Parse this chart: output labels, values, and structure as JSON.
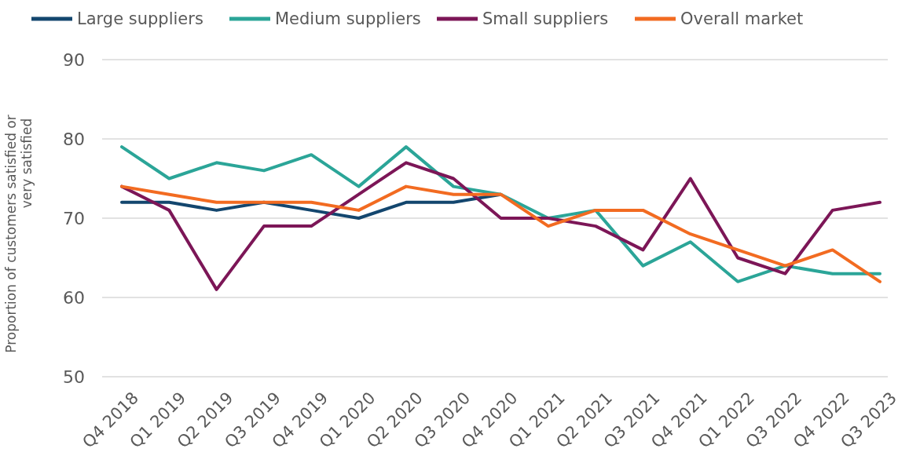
{
  "chart_data": {
    "type": "line",
    "ylabel": "Proportion of customers satisfied or very satisfied",
    "categories": [
      "Q4 2018",
      "Q1 2019",
      "Q2 2019",
      "Q3 2019",
      "Q4 2019",
      "Q1 2020",
      "Q2 2020",
      "Q3 2020",
      "Q4 2020",
      "Q1 2021",
      "Q2 2021",
      "Q3 2021",
      "Q4 2021",
      "Q1 2022",
      "Q3 2022",
      "Q4 2022",
      "Q3 2023"
    ],
    "series": [
      {
        "name": "Large suppliers",
        "color": "#13466e",
        "values": [
          72,
          72,
          71,
          72,
          71,
          70,
          72,
          72,
          73,
          null,
          null,
          null,
          null,
          null,
          null,
          null,
          null
        ]
      },
      {
        "name": "Medium suppliers",
        "color": "#2ba598",
        "values": [
          79,
          75,
          77,
          76,
          78,
          74,
          79,
          74,
          73,
          70,
          71,
          64,
          67,
          62,
          64,
          63,
          63
        ]
      },
      {
        "name": "Small suppliers",
        "color": "#7c1657",
        "values": [
          74,
          71,
          61,
          69,
          69,
          73,
          77,
          75,
          70,
          70,
          69,
          66,
          75,
          65,
          63,
          71,
          72
        ]
      },
      {
        "name": "Overall market",
        "color": "#f26b21",
        "values": [
          74,
          73,
          72,
          72,
          72,
          71,
          74,
          73,
          73,
          69,
          71,
          71,
          68,
          66,
          64,
          66,
          62
        ]
      }
    ],
    "ylim": [
      50,
      90
    ],
    "yticks": [
      50,
      60,
      70,
      80,
      90
    ],
    "grid": "y",
    "legend": "top",
    "line_style": "solid",
    "marker": "none"
  }
}
